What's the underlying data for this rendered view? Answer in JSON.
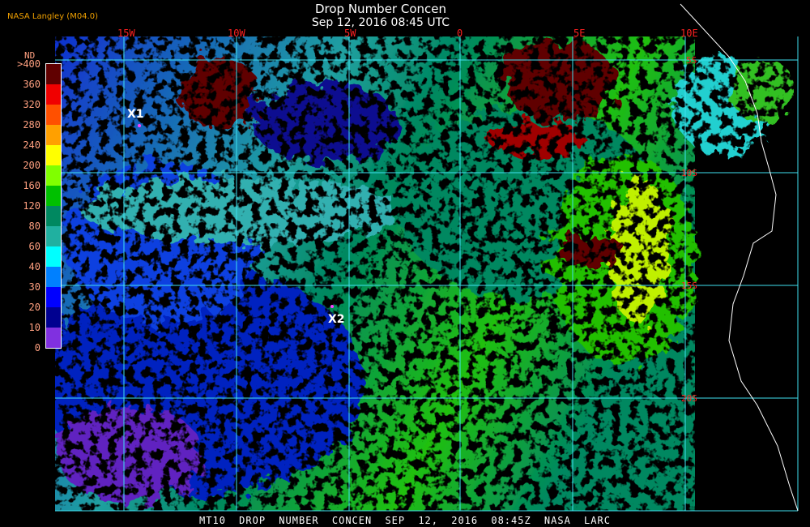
{
  "header": {
    "title": "Drop Number Concen",
    "subtitle": "Sep 12, 2016 08:45 UTC",
    "producer": "NASA Langley (M04.0)"
  },
  "map": {
    "longitude_labels": [
      "15W",
      "10W",
      "5W",
      "0",
      "5E",
      "10E"
    ],
    "latitude_labels": [
      "5S",
      "10S",
      "15S",
      "20S"
    ],
    "markers": [
      "X1",
      "X2"
    ],
    "grid_color": "#40e0f0",
    "coastline_color": "#ffffff"
  },
  "legend": {
    "title": "ND",
    "labels": [
      ">400",
      "360",
      "320",
      "280",
      "240",
      "200",
      "160",
      "120",
      "80",
      "60",
      "40",
      "30",
      "20",
      "10",
      "0"
    ],
    "colors": [
      "#600000",
      "#f00000",
      "#ff5000",
      "#ffa000",
      "#ffff00",
      "#80ff00",
      "#00c000",
      "#008860",
      "#20b0a0",
      "#00ffff",
      "#0080ff",
      "#0000ff",
      "#000090",
      "#8030e0"
    ]
  },
  "footer": "MT10  DROP NUMBER CONCEN   SEP 12, 2016 08:45Z   NASA LARC"
}
